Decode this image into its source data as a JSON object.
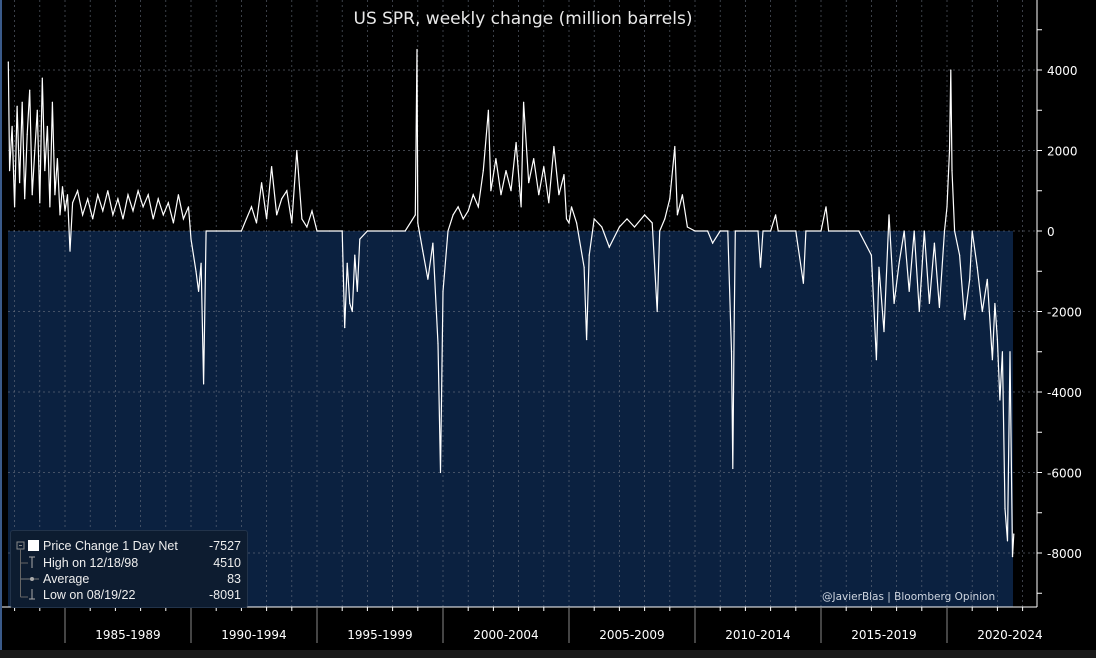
{
  "title": "US SPR, weekly change (million barrels)",
  "legend": {
    "series": {
      "label": "Price Change 1 Day Net",
      "value": "-7527"
    },
    "high": {
      "label": "High on 12/18/98",
      "value": "4510"
    },
    "average": {
      "label": "Average",
      "value": "83"
    },
    "low": {
      "label": "Low on 08/19/22",
      "value": "-8091"
    }
  },
  "credit": "@JavierBlas | Bloomberg Opinion",
  "colors": {
    "fill": "#0b2140",
    "line": "#ffffff",
    "grid": "#6b7280"
  },
  "chart_data": {
    "type": "area",
    "title": "US SPR, weekly change (million barrels)",
    "xlabel": "",
    "ylabel": "",
    "ylim": [
      -9500,
      5600
    ],
    "xlim": [
      1982.75,
      2023.7
    ],
    "x_tick_labels": [
      "1985-1989",
      "1990-1994",
      "1995-1999",
      "2000-2004",
      "2005-2009",
      "2010-2014",
      "2015-2019",
      "2020-2024"
    ],
    "y_ticks": [
      4000,
      2000,
      0,
      -2000,
      -4000,
      -6000,
      -8000
    ],
    "grid": true,
    "series": [
      {
        "name": "Price Change 1 Day Net",
        "points": [
          [
            1982.75,
            4200
          ],
          [
            1982.8,
            1500
          ],
          [
            1982.9,
            2600
          ],
          [
            1983.0,
            600
          ],
          [
            1983.1,
            3100
          ],
          [
            1983.2,
            1200
          ],
          [
            1983.3,
            3200
          ],
          [
            1983.4,
            800
          ],
          [
            1983.5,
            2400
          ],
          [
            1983.6,
            3500
          ],
          [
            1983.7,
            900
          ],
          [
            1983.8,
            2000
          ],
          [
            1983.9,
            3000
          ],
          [
            1984.0,
            700
          ],
          [
            1984.1,
            3800
          ],
          [
            1984.2,
            1500
          ],
          [
            1984.3,
            2600
          ],
          [
            1984.4,
            600
          ],
          [
            1984.5,
            3200
          ],
          [
            1984.6,
            900
          ],
          [
            1984.7,
            1800
          ],
          [
            1984.8,
            400
          ],
          [
            1984.9,
            1100
          ],
          [
            1985.0,
            500
          ],
          [
            1985.1,
            900
          ],
          [
            1985.2,
            -500
          ],
          [
            1985.3,
            700
          ],
          [
            1985.5,
            1000
          ],
          [
            1985.7,
            400
          ],
          [
            1985.9,
            800
          ],
          [
            1986.1,
            300
          ],
          [
            1986.3,
            900
          ],
          [
            1986.5,
            500
          ],
          [
            1986.7,
            1000
          ],
          [
            1986.9,
            400
          ],
          [
            1987.1,
            800
          ],
          [
            1987.3,
            300
          ],
          [
            1987.5,
            900
          ],
          [
            1987.7,
            500
          ],
          [
            1987.9,
            1000
          ],
          [
            1988.1,
            600
          ],
          [
            1988.3,
            900
          ],
          [
            1988.5,
            300
          ],
          [
            1988.7,
            800
          ],
          [
            1988.9,
            400
          ],
          [
            1989.1,
            700
          ],
          [
            1989.3,
            200
          ],
          [
            1989.5,
            900
          ],
          [
            1989.7,
            300
          ],
          [
            1989.9,
            600
          ],
          [
            1990.0,
            -200
          ],
          [
            1990.2,
            -1000
          ],
          [
            1990.3,
            -1500
          ],
          [
            1990.4,
            -800
          ],
          [
            1990.5,
            -3800
          ],
          [
            1990.6,
            0
          ],
          [
            1991.0,
            0
          ],
          [
            1991.5,
            0
          ],
          [
            1992.0,
            0
          ],
          [
            1992.2,
            300
          ],
          [
            1992.4,
            600
          ],
          [
            1992.6,
            200
          ],
          [
            1992.8,
            1200
          ],
          [
            1993.0,
            300
          ],
          [
            1993.2,
            1600
          ],
          [
            1993.4,
            400
          ],
          [
            1993.6,
            800
          ],
          [
            1993.8,
            1000
          ],
          [
            1994.0,
            200
          ],
          [
            1994.2,
            2000
          ],
          [
            1994.4,
            300
          ],
          [
            1994.6,
            100
          ],
          [
            1994.8,
            500
          ],
          [
            1995.0,
            0
          ],
          [
            1995.5,
            0
          ],
          [
            1996.0,
            0
          ],
          [
            1996.1,
            -2400
          ],
          [
            1996.2,
            -800
          ],
          [
            1996.3,
            -1800
          ],
          [
            1996.4,
            -2000
          ],
          [
            1996.5,
            -600
          ],
          [
            1996.6,
            -1500
          ],
          [
            1996.7,
            -200
          ],
          [
            1997.0,
            0
          ],
          [
            1998.0,
            0
          ],
          [
            1998.5,
            0
          ],
          [
            1998.9,
            400
          ],
          [
            1998.97,
            4510
          ],
          [
            1999.0,
            200
          ],
          [
            1999.2,
            -500
          ],
          [
            1999.4,
            -1200
          ],
          [
            1999.6,
            -300
          ],
          [
            1999.8,
            -2800
          ],
          [
            1999.9,
            -6000
          ],
          [
            2000.0,
            -1500
          ],
          [
            2000.2,
            0
          ],
          [
            2000.4,
            400
          ],
          [
            2000.6,
            600
          ],
          [
            2000.8,
            300
          ],
          [
            2001.0,
            500
          ],
          [
            2001.2,
            900
          ],
          [
            2001.4,
            600
          ],
          [
            2001.6,
            1500
          ],
          [
            2001.8,
            3000
          ],
          [
            2001.9,
            1000
          ],
          [
            2002.1,
            1800
          ],
          [
            2002.3,
            900
          ],
          [
            2002.5,
            1500
          ],
          [
            2002.7,
            1000
          ],
          [
            2002.9,
            2200
          ],
          [
            2003.1,
            600
          ],
          [
            2003.2,
            3200
          ],
          [
            2003.4,
            1200
          ],
          [
            2003.6,
            1800
          ],
          [
            2003.8,
            900
          ],
          [
            2004.0,
            1600
          ],
          [
            2004.2,
            700
          ],
          [
            2004.4,
            2100
          ],
          [
            2004.6,
            900
          ],
          [
            2004.8,
            1400
          ],
          [
            2004.9,
            300
          ],
          [
            2005.0,
            200
          ],
          [
            2005.1,
            600
          ],
          [
            2005.3,
            200
          ],
          [
            2005.6,
            -900
          ],
          [
            2005.7,
            -2700
          ],
          [
            2005.8,
            -600
          ],
          [
            2006.0,
            300
          ],
          [
            2006.3,
            100
          ],
          [
            2006.6,
            -400
          ],
          [
            2007.0,
            100
          ],
          [
            2007.3,
            300
          ],
          [
            2007.6,
            100
          ],
          [
            2008.0,
            400
          ],
          [
            2008.3,
            200
          ],
          [
            2008.5,
            -2000
          ],
          [
            2008.6,
            0
          ],
          [
            2008.8,
            300
          ],
          [
            2009.0,
            800
          ],
          [
            2009.2,
            2100
          ],
          [
            2009.3,
            400
          ],
          [
            2009.5,
            900
          ],
          [
            2009.7,
            100
          ],
          [
            2010.0,
            0
          ],
          [
            2010.5,
            0
          ],
          [
            2010.7,
            -300
          ],
          [
            2011.0,
            0
          ],
          [
            2011.3,
            0
          ],
          [
            2011.45,
            -3000
          ],
          [
            2011.5,
            -5900
          ],
          [
            2011.55,
            -2500
          ],
          [
            2011.6,
            0
          ],
          [
            2012.5,
            0
          ],
          [
            2012.6,
            -900
          ],
          [
            2012.7,
            0
          ],
          [
            2013.0,
            0
          ],
          [
            2013.2,
            400
          ],
          [
            2013.3,
            0
          ],
          [
            2014.0,
            0
          ],
          [
            2014.3,
            -1300
          ],
          [
            2014.4,
            0
          ],
          [
            2015.0,
            0
          ],
          [
            2015.2,
            600
          ],
          [
            2015.3,
            0
          ],
          [
            2016.0,
            0
          ],
          [
            2016.5,
            0
          ],
          [
            2017.0,
            -600
          ],
          [
            2017.2,
            -3200
          ],
          [
            2017.3,
            -900
          ],
          [
            2017.5,
            -2500
          ],
          [
            2017.7,
            400
          ],
          [
            2017.9,
            -1800
          ],
          [
            2018.1,
            -800
          ],
          [
            2018.3,
            0
          ],
          [
            2018.5,
            -1500
          ],
          [
            2018.7,
            0
          ],
          [
            2018.9,
            -2000
          ],
          [
            2019.1,
            0
          ],
          [
            2019.3,
            -1800
          ],
          [
            2019.5,
            -300
          ],
          [
            2019.7,
            -1900
          ],
          [
            2019.9,
            0
          ],
          [
            2020.0,
            600
          ],
          [
            2020.1,
            2000
          ],
          [
            2020.15,
            4000
          ],
          [
            2020.2,
            1500
          ],
          [
            2020.3,
            0
          ],
          [
            2020.5,
            -600
          ],
          [
            2020.7,
            -2200
          ],
          [
            2020.9,
            -1200
          ],
          [
            2021.0,
            0
          ],
          [
            2021.2,
            -900
          ],
          [
            2021.4,
            -2000
          ],
          [
            2021.6,
            -1200
          ],
          [
            2021.8,
            -3200
          ],
          [
            2021.9,
            -1800
          ],
          [
            2022.0,
            -2700
          ],
          [
            2022.1,
            -4200
          ],
          [
            2022.2,
            -3000
          ],
          [
            2022.3,
            -6900
          ],
          [
            2022.4,
            -7700
          ],
          [
            2022.5,
            -3000
          ],
          [
            2022.6,
            -8091
          ],
          [
            2022.65,
            -7527
          ]
        ]
      }
    ]
  }
}
